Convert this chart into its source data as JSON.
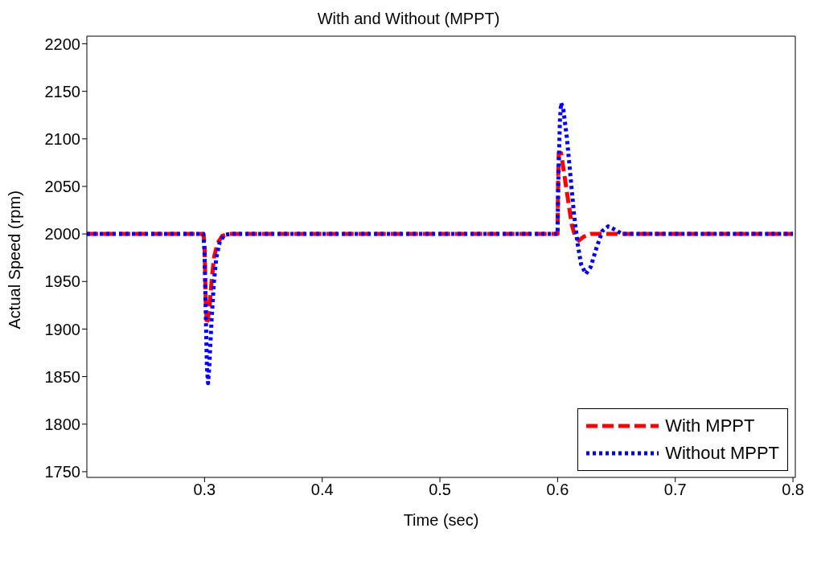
{
  "chart_data": {
    "type": "line",
    "title": "With and Without (MPPT)",
    "xlabel": "Time (sec)",
    "ylabel": "Actual Speed (rpm)",
    "xlim": [
      0.2,
      0.802
    ],
    "xticks": [
      0.3,
      0.4,
      0.5,
      0.6,
      0.7,
      0.8
    ],
    "ylim": [
      1744,
      2208
    ],
    "yticks": [
      1750,
      1800,
      1850,
      1900,
      1950,
      2000,
      2050,
      2100,
      2150,
      2200
    ],
    "grid": false,
    "legend": "bottom right",
    "marker": "none",
    "series": [
      {
        "name": "With MPPT",
        "color": "#ff0000",
        "line_style": "dashed",
        "x": [
          0.2,
          0.299,
          0.3,
          0.301,
          0.302,
          0.304,
          0.306,
          0.308,
          0.311,
          0.315,
          0.32,
          0.6,
          0.6005,
          0.601,
          0.603,
          0.606,
          0.609,
          0.612,
          0.615,
          0.618,
          0.622,
          0.628,
          0.8
        ],
        "values": [
          2000,
          2000,
          1990,
          1930,
          1905,
          1920,
          1950,
          1975,
          1990,
          1998,
          2000,
          2000,
          2060,
          2085,
          2085,
          2060,
          2035,
          2010,
          1997,
          1993,
          1997,
          2000,
          2000
        ]
      },
      {
        "name": "Without MPPT",
        "color": "#0000ff",
        "line_style": "dotted",
        "x": [
          0.2,
          0.299,
          0.3,
          0.301,
          0.302,
          0.303,
          0.304,
          0.306,
          0.308,
          0.31,
          0.313,
          0.317,
          0.322,
          0.6,
          0.6005,
          0.602,
          0.603,
          0.605,
          0.608,
          0.611,
          0.614,
          0.617,
          0.62,
          0.624,
          0.628,
          0.633,
          0.638,
          0.643,
          0.648,
          0.655,
          0.8
        ],
        "values": [
          2000,
          2000,
          1980,
          1920,
          1860,
          1843,
          1860,
          1910,
          1950,
          1975,
          1992,
          1999,
          2000,
          2000,
          2050,
          2120,
          2138,
          2130,
          2100,
          2060,
          2020,
          1990,
          1968,
          1958,
          1965,
          1985,
          2003,
          2008,
          2005,
          2000,
          2000
        ]
      }
    ]
  }
}
